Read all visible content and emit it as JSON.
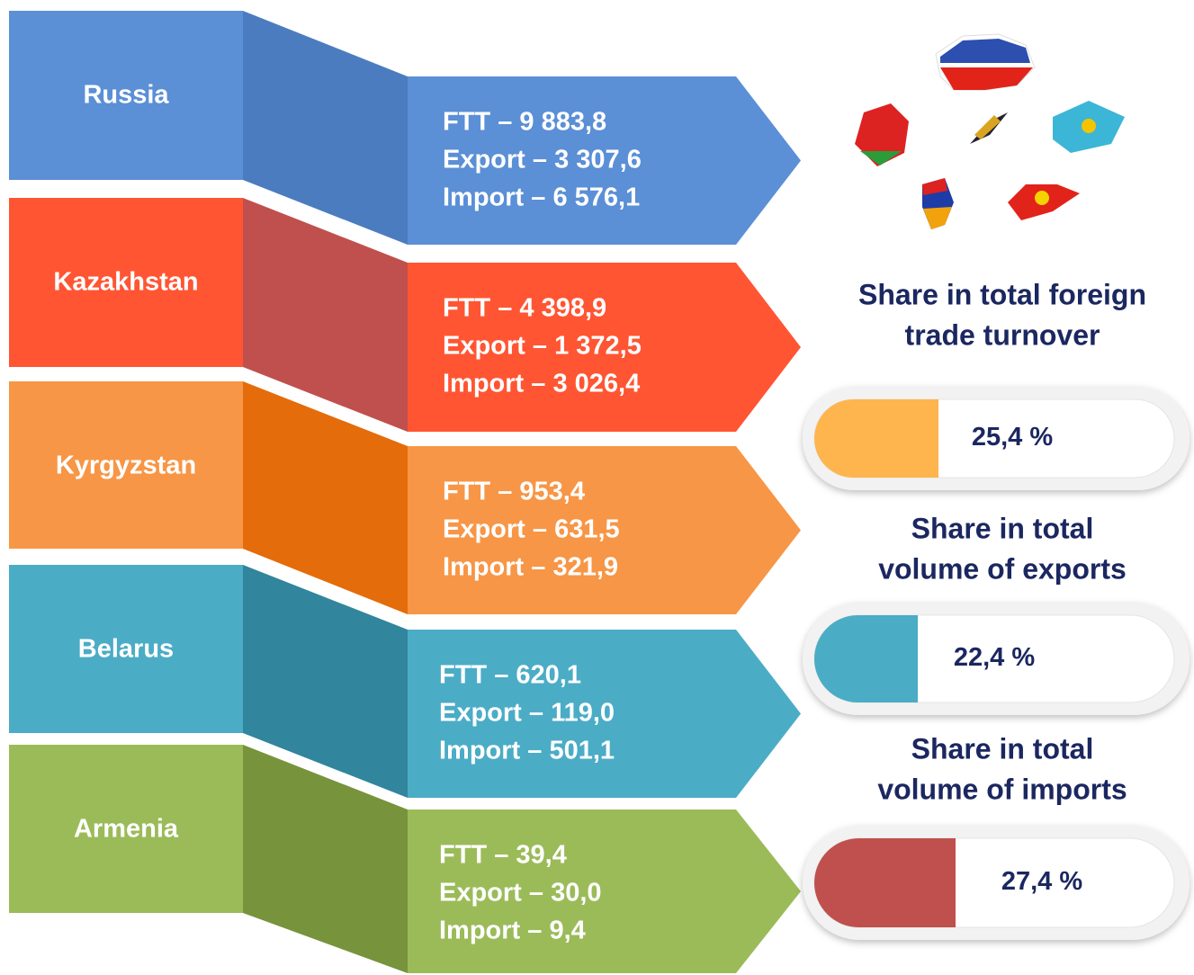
{
  "countries": [
    {
      "name": "Russia",
      "lines": [
        "FTT – 9 883,8",
        "Export – 3 307,6",
        "Import – 6 576,1"
      ]
    },
    {
      "name": "Kazakhstan",
      "lines": [
        "FTT – 4 398,9",
        "Export – 1 372,5",
        "Import – 3 026,4"
      ]
    },
    {
      "name": "Kyrgyzstan",
      "lines": [
        "FTT – 953,4",
        "Export – 631,5",
        "Import – 321,9"
      ]
    },
    {
      "name": "Belarus",
      "lines": [
        "FTT – 620,1",
        "Export – 119,0",
        "Import – 501,1"
      ]
    },
    {
      "name": "Armenia",
      "lines": [
        "FTT – 39,4",
        "Export – 30,0",
        "Import – 9,4"
      ]
    }
  ],
  "shares": [
    {
      "title": [
        "Share in total foreign",
        "trade turnover"
      ],
      "value": "25,4 %"
    },
    {
      "title": [
        "Share in total",
        "volume of exports"
      ],
      "value": "22,4 %"
    },
    {
      "title": [
        "Share in total",
        "volume of imports"
      ],
      "value": "27,4 %"
    }
  ]
}
